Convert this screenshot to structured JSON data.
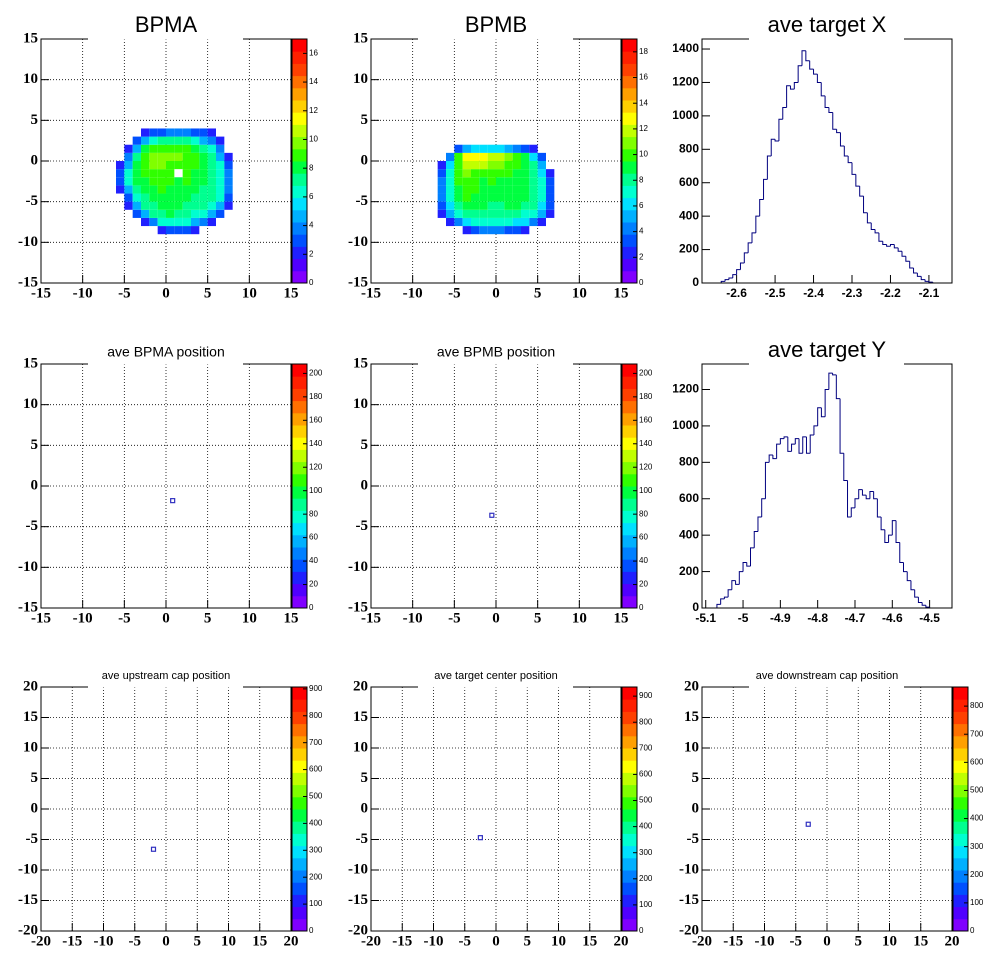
{
  "chart_data": [
    {
      "type": "hist2d",
      "title": "BPMA",
      "xlim": [
        -15,
        15
      ],
      "ylim": [
        -15,
        15
      ],
      "xticks": [
        -15,
        -10,
        -5,
        0,
        5,
        10,
        15
      ],
      "yticks": [
        -15,
        -10,
        -5,
        0,
        5,
        10,
        15
      ],
      "grid": true,
      "zlim": [
        0,
        17
      ],
      "zticks": [
        0,
        2,
        4,
        6,
        8,
        10,
        12,
        14,
        16
      ],
      "palette": [
        "#8000ff",
        "#5000ff",
        "#2020ff",
        "#0050ff",
        "#0080ff",
        "#00b0ff",
        "#00e0ff",
        "#00ffd0",
        "#00ff90",
        "#00ff40",
        "#30ff00",
        "#80ff00",
        "#c0ff00",
        "#ffff00",
        "#ffd000",
        "#ffa000",
        "#ff7000",
        "#ff4000",
        "#ff2000",
        "#ff0000"
      ],
      "xbins": [
        -6,
        -5,
        -4,
        -3,
        -2,
        -1,
        0,
        1,
        2,
        3,
        4,
        5,
        6,
        7,
        8
      ],
      "ybins": [
        -9,
        -8,
        -7,
        -6,
        -5,
        -4,
        -3,
        -2,
        -1,
        0,
        1,
        2,
        3,
        4
      ],
      "z": [
        [
          0,
          0,
          0,
          0,
          0,
          2,
          3,
          3,
          3,
          2,
          0,
          0,
          0,
          0
        ],
        [
          0,
          0,
          0,
          2,
          4,
          6,
          6,
          6,
          6,
          5,
          4,
          2,
          0,
          0
        ],
        [
          0,
          0,
          3,
          5,
          7,
          7,
          8,
          7,
          7,
          6,
          6,
          5,
          3,
          0
        ],
        [
          0,
          2,
          5,
          7,
          7,
          8,
          8,
          8,
          7,
          7,
          7,
          6,
          5,
          2
        ],
        [
          0,
          3,
          6,
          7,
          8,
          8,
          8,
          8,
          8,
          7,
          7,
          7,
          6,
          3
        ],
        [
          2,
          5,
          7,
          8,
          8,
          9,
          8,
          8,
          8,
          8,
          7,
          7,
          6,
          4
        ],
        [
          3,
          6,
          8,
          8,
          9,
          9,
          9,
          8,
          9,
          8,
          8,
          7,
          6,
          4
        ],
        [
          3,
          6,
          8,
          9,
          9,
          9,
          9,
          0,
          9,
          8,
          8,
          7,
          6,
          4
        ],
        [
          2,
          5,
          8,
          9,
          10,
          10,
          9,
          9,
          9,
          9,
          8,
          7,
          6,
          3
        ],
        [
          0,
          4,
          7,
          9,
          10,
          10,
          10,
          10,
          9,
          9,
          8,
          7,
          5,
          2
        ],
        [
          0,
          2,
          5,
          8,
          9,
          9,
          9,
          9,
          9,
          8,
          7,
          6,
          4,
          0
        ],
        [
          0,
          0,
          3,
          5,
          6,
          7,
          7,
          7,
          7,
          6,
          5,
          4,
          2,
          0
        ],
        [
          0,
          0,
          0,
          2,
          3,
          3,
          4,
          4,
          4,
          3,
          3,
          2,
          0,
          0
        ]
      ]
    },
    {
      "type": "hist2d",
      "title": "BPMB",
      "xlim": [
        -15,
        15
      ],
      "ylim": [
        -15,
        15
      ],
      "xticks": [
        -15,
        -10,
        -5,
        0,
        5,
        10,
        15
      ],
      "yticks": [
        -15,
        -10,
        -5,
        0,
        5,
        10,
        15
      ],
      "grid": true,
      "zlim": [
        0,
        19
      ],
      "zticks": [
        0,
        2,
        4,
        6,
        8,
        10,
        12,
        14,
        16,
        18
      ],
      "palette": [
        "#8000ff",
        "#5000ff",
        "#2020ff",
        "#0050ff",
        "#0080ff",
        "#00b0ff",
        "#00e0ff",
        "#00ffd0",
        "#00ff90",
        "#00ff40",
        "#30ff00",
        "#80ff00",
        "#c0ff00",
        "#ffff00",
        "#ffd000",
        "#ffa000",
        "#ff7000",
        "#ff4000",
        "#ff2000",
        "#ff0000"
      ],
      "xbins": [
        -7,
        -6,
        -5,
        -4,
        -3,
        -2,
        -1,
        0,
        1,
        2,
        3,
        4,
        5,
        6,
        7
      ],
      "ybins": [
        -9,
        -8,
        -7,
        -6,
        -5,
        -4,
        -3,
        -2,
        -1,
        0,
        1,
        2
      ],
      "z": [
        [
          0,
          0,
          0,
          2,
          3,
          4,
          4,
          4,
          3,
          3,
          2,
          0,
          0,
          0
        ],
        [
          0,
          2,
          4,
          6,
          7,
          7,
          7,
          7,
          7,
          6,
          6,
          4,
          2,
          0
        ],
        [
          2,
          5,
          7,
          8,
          8,
          8,
          8,
          8,
          8,
          8,
          7,
          7,
          5,
          2
        ],
        [
          3,
          6,
          8,
          9,
          9,
          9,
          8,
          8,
          9,
          9,
          8,
          8,
          6,
          3
        ],
        [
          4,
          7,
          9,
          10,
          9,
          9,
          9,
          9,
          9,
          9,
          9,
          8,
          7,
          3
        ],
        [
          4,
          7,
          9,
          10,
          10,
          9,
          9,
          9,
          9,
          9,
          9,
          8,
          7,
          3
        ],
        [
          4,
          7,
          10,
          10,
          10,
          9,
          10,
          9,
          9,
          9,
          9,
          8,
          7,
          3
        ],
        [
          3,
          7,
          10,
          11,
          10,
          10,
          10,
          10,
          10,
          9,
          9,
          8,
          6,
          2
        ],
        [
          2,
          6,
          10,
          12,
          12,
          12,
          11,
          11,
          10,
          10,
          9,
          8,
          5,
          0
        ],
        [
          0,
          4,
          10,
          13,
          13,
          13,
          12,
          12,
          11,
          10,
          9,
          6,
          3,
          0
        ],
        [
          0,
          0,
          3,
          5,
          6,
          6,
          6,
          6,
          5,
          4,
          3,
          2,
          0,
          0
        ]
      ]
    },
    {
      "type": "histogram",
      "title": "ave target X",
      "xlim": [
        -2.69,
        -2.04
      ],
      "ylim": [
        0,
        1460
      ],
      "xticks": [
        -2.6,
        -2.5,
        -2.4,
        -2.3,
        -2.2,
        -2.1
      ],
      "yticks": [
        0,
        200,
        400,
        600,
        800,
        1000,
        1200,
        1400
      ],
      "grid": false,
      "color": "#00007f",
      "bins": [
        -2.65,
        -2.64,
        -2.63,
        -2.62,
        -2.61,
        -2.6,
        -2.59,
        -2.58,
        -2.57,
        -2.56,
        -2.55,
        -2.54,
        -2.53,
        -2.52,
        -2.51,
        -2.5,
        -2.49,
        -2.48,
        -2.47,
        -2.46,
        -2.45,
        -2.44,
        -2.43,
        -2.42,
        -2.41,
        -2.4,
        -2.39,
        -2.38,
        -2.37,
        -2.36,
        -2.35,
        -2.34,
        -2.33,
        -2.32,
        -2.31,
        -2.3,
        -2.29,
        -2.28,
        -2.27,
        -2.26,
        -2.25,
        -2.24,
        -2.23,
        -2.22,
        -2.21,
        -2.2,
        -2.19,
        -2.18,
        -2.17,
        -2.16,
        -2.15,
        -2.14,
        -2.13,
        -2.12,
        -2.11,
        -2.1,
        -2.09,
        -2.08
      ],
      "values": [
        0,
        10,
        20,
        30,
        50,
        80,
        120,
        180,
        240,
        300,
        400,
        500,
        620,
        760,
        860,
        850,
        980,
        1050,
        1180,
        1160,
        1200,
        1300,
        1390,
        1330,
        1280,
        1250,
        1200,
        1120,
        1050,
        1020,
        920,
        900,
        820,
        760,
        720,
        650,
        580,
        520,
        420,
        360,
        320,
        300,
        250,
        230,
        220,
        230,
        210,
        190,
        160,
        130,
        90,
        60,
        40,
        20,
        10,
        5,
        0
      ]
    },
    {
      "type": "scatter",
      "title": "ave BPMA position",
      "xlim": [
        -15,
        15
      ],
      "ylim": [
        -15,
        15
      ],
      "xticks": [
        -15,
        -10,
        -5,
        0,
        5,
        10,
        15
      ],
      "yticks": [
        -15,
        -10,
        -5,
        0,
        5,
        10,
        15
      ],
      "grid": true,
      "color": "#3030c0",
      "zlim": [
        0,
        208
      ],
      "zticks": [
        0,
        20,
        40,
        60,
        80,
        100,
        120,
        140,
        160,
        180,
        200
      ],
      "palette": [
        "#8000ff",
        "#5000ff",
        "#2020ff",
        "#0050ff",
        "#0080ff",
        "#00b0ff",
        "#00e0ff",
        "#00ffd0",
        "#00ff90",
        "#00ff40",
        "#30ff00",
        "#80ff00",
        "#c0ff00",
        "#ffff00",
        "#ffd000",
        "#ffa000",
        "#ff7000",
        "#ff4000",
        "#ff2000",
        "#ff0000"
      ],
      "x": [
        0.8
      ],
      "y": [
        -1.8
      ]
    },
    {
      "type": "scatter",
      "title": "ave BPMB position",
      "xlim": [
        -15,
        15
      ],
      "ylim": [
        -15,
        15
      ],
      "xticks": [
        -15,
        -10,
        -5,
        0,
        5,
        10,
        15
      ],
      "yticks": [
        -15,
        -10,
        -5,
        0,
        5,
        10,
        15
      ],
      "grid": true,
      "color": "#3030c0",
      "zlim": [
        0,
        208
      ],
      "zticks": [
        0,
        20,
        40,
        60,
        80,
        100,
        120,
        140,
        160,
        180,
        200
      ],
      "palette": [
        "#8000ff",
        "#5000ff",
        "#2020ff",
        "#0050ff",
        "#0080ff",
        "#00b0ff",
        "#00e0ff",
        "#00ffd0",
        "#00ff90",
        "#00ff40",
        "#30ff00",
        "#80ff00",
        "#c0ff00",
        "#ffff00",
        "#ffd000",
        "#ffa000",
        "#ff7000",
        "#ff4000",
        "#ff2000",
        "#ff0000"
      ],
      "x": [
        -0.5
      ],
      "y": [
        -3.6
      ]
    },
    {
      "type": "histogram",
      "title": "ave target Y",
      "xlim": [
        -5.11,
        -4.44
      ],
      "ylim": [
        0,
        1340
      ],
      "xticks": [
        -5.1,
        -5,
        -4.9,
        -4.8,
        -4.7,
        -4.6,
        -4.5
      ],
      "yticks": [
        0,
        200,
        400,
        600,
        800,
        1000,
        1200
      ],
      "grid": false,
      "color": "#00007f",
      "bins": [
        -5.08,
        -5.07,
        -5.06,
        -5.05,
        -5.04,
        -5.03,
        -5.02,
        -5.01,
        -5,
        -4.99,
        -4.98,
        -4.97,
        -4.96,
        -4.95,
        -4.94,
        -4.93,
        -4.92,
        -4.91,
        -4.9,
        -4.89,
        -4.88,
        -4.87,
        -4.86,
        -4.85,
        -4.84,
        -4.83,
        -4.82,
        -4.81,
        -4.8,
        -4.79,
        -4.78,
        -4.77,
        -4.76,
        -4.75,
        -4.74,
        -4.73,
        -4.72,
        -4.71,
        -4.7,
        -4.69,
        -4.68,
        -4.67,
        -4.66,
        -4.65,
        -4.64,
        -4.63,
        -4.62,
        -4.61,
        -4.6,
        -4.59,
        -4.58,
        -4.57,
        -4.56,
        -4.55,
        -4.54,
        -4.53,
        -4.52,
        -4.51,
        -4.5,
        -4.49
      ],
      "values": [
        0,
        20,
        50,
        60,
        100,
        150,
        130,
        200,
        250,
        230,
        330,
        420,
        500,
        600,
        800,
        840,
        820,
        900,
        930,
        940,
        860,
        900,
        930,
        850,
        940,
        850,
        950,
        1000,
        1100,
        1050,
        1200,
        1290,
        1280,
        1150,
        850,
        700,
        500,
        550,
        600,
        650,
        620,
        600,
        640,
        600,
        500,
        430,
        360,
        400,
        480,
        360,
        250,
        200,
        150,
        100,
        60,
        30,
        15,
        5,
        0
      ]
    },
    {
      "type": "scatter",
      "title": "ave upstream cap position",
      "xlim": [
        -20,
        20
      ],
      "ylim": [
        -20,
        20
      ],
      "xticks": [
        -20,
        -15,
        -10,
        -5,
        0,
        5,
        10,
        15,
        20
      ],
      "yticks": [
        -20,
        -15,
        -10,
        -5,
        0,
        5,
        10,
        15,
        20
      ],
      "grid": true,
      "color": "#3030c0",
      "zlim": [
        0,
        907
      ],
      "zticks": [
        0,
        100,
        200,
        300,
        400,
        500,
        600,
        700,
        800,
        900
      ],
      "palette": [
        "#8000ff",
        "#5000ff",
        "#2020ff",
        "#0050ff",
        "#0080ff",
        "#00b0ff",
        "#00e0ff",
        "#00ffd0",
        "#00ff90",
        "#00ff40",
        "#30ff00",
        "#80ff00",
        "#c0ff00",
        "#ffff00",
        "#ffd000",
        "#ffa000",
        "#ff7000",
        "#ff4000",
        "#ff2000",
        "#ff0000"
      ],
      "x": [
        -2
      ],
      "y": [
        -6.6
      ]
    },
    {
      "type": "scatter",
      "title": "ave target center  position",
      "xlim": [
        -20,
        20
      ],
      "ylim": [
        -20,
        20
      ],
      "xticks": [
        -20,
        -15,
        -10,
        -5,
        0,
        5,
        10,
        15,
        20
      ],
      "yticks": [
        -20,
        -15,
        -10,
        -5,
        0,
        5,
        10,
        15,
        20
      ],
      "grid": true,
      "color": "#3030c0",
      "zlim": [
        0,
        935
      ],
      "zticks": [
        0,
        100,
        200,
        300,
        400,
        500,
        600,
        700,
        800,
        900
      ],
      "palette": [
        "#8000ff",
        "#5000ff",
        "#2020ff",
        "#0050ff",
        "#0080ff",
        "#00b0ff",
        "#00e0ff",
        "#00ffd0",
        "#00ff90",
        "#00ff40",
        "#30ff00",
        "#80ff00",
        "#c0ff00",
        "#ffff00",
        "#ffd000",
        "#ffa000",
        "#ff7000",
        "#ff4000",
        "#ff2000",
        "#ff0000"
      ],
      "x": [
        -2.5
      ],
      "y": [
        -4.7
      ]
    },
    {
      "type": "scatter",
      "title": "ave downstream cap position",
      "xlim": [
        -20,
        20
      ],
      "ylim": [
        -20,
        20
      ],
      "xticks": [
        -20,
        -15,
        -10,
        -5,
        0,
        5,
        10,
        15,
        20
      ],
      "yticks": [
        -20,
        -15,
        -10,
        -5,
        0,
        5,
        10,
        15,
        20
      ],
      "grid": true,
      "color": "#3030c0",
      "zlim": [
        0,
        868
      ],
      "zticks": [
        0,
        100,
        200,
        300,
        400,
        500,
        600,
        700,
        800
      ],
      "palette": [
        "#8000ff",
        "#5000ff",
        "#2020ff",
        "#0050ff",
        "#0080ff",
        "#00b0ff",
        "#00e0ff",
        "#00ffd0",
        "#00ff90",
        "#00ff40",
        "#30ff00",
        "#80ff00",
        "#c0ff00",
        "#ffff00",
        "#ffd000",
        "#ffa000",
        "#ff7000",
        "#ff4000",
        "#ff2000",
        "#ff0000"
      ],
      "x": [
        -3
      ],
      "y": [
        -2.5
      ]
    }
  ]
}
